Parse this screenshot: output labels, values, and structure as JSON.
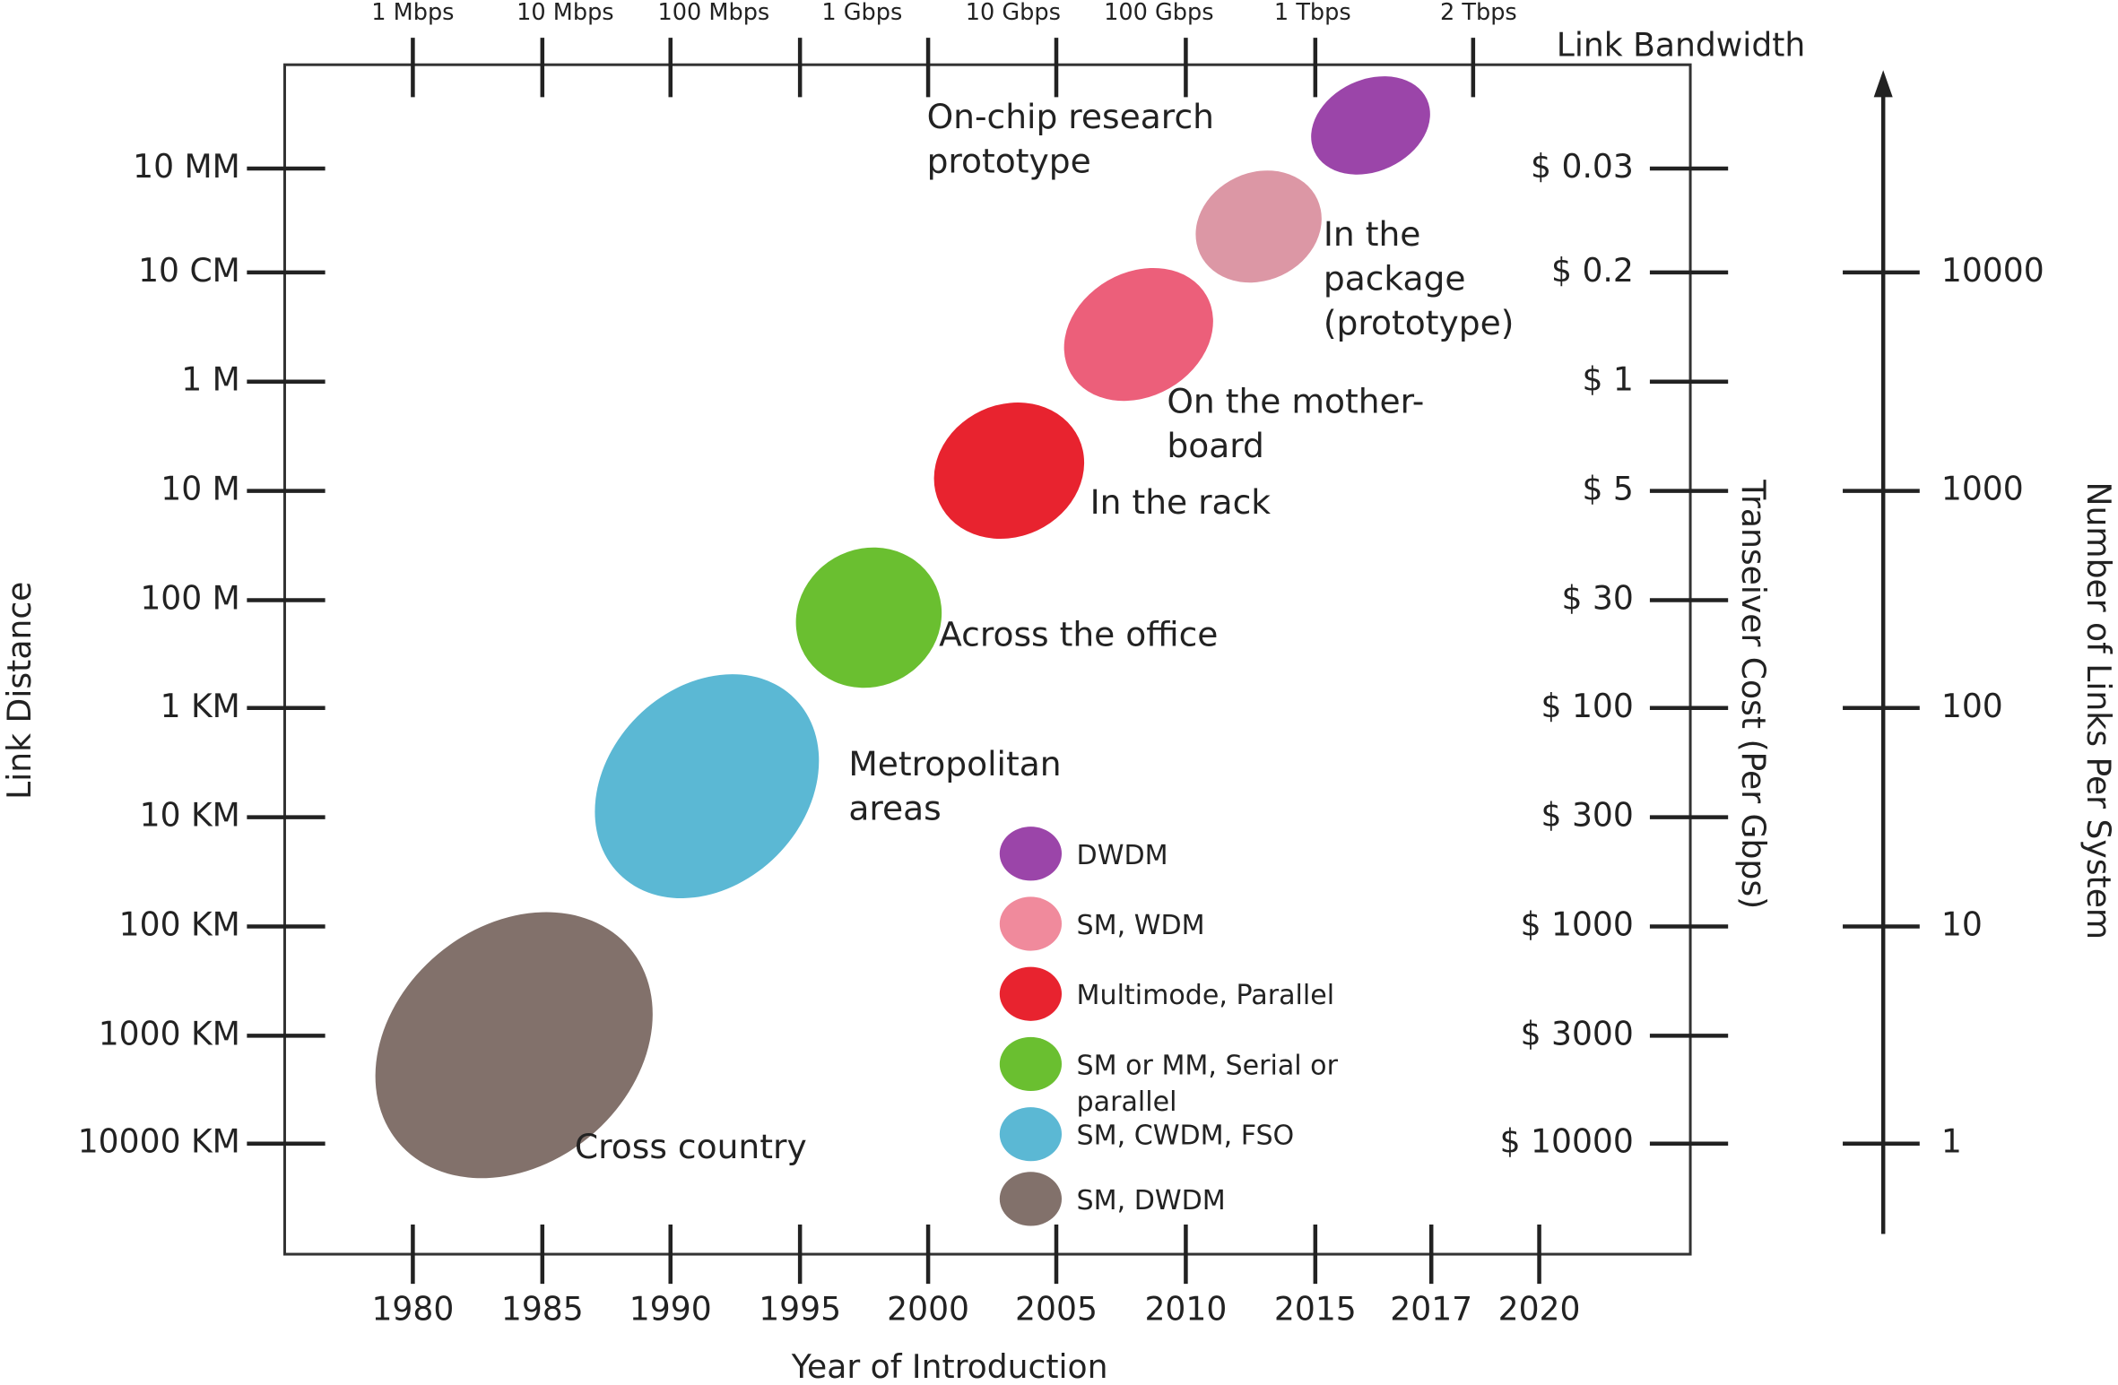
{
  "top_axis": {
    "title": "Link Bandwidth",
    "ticks": [
      "1 Mbps",
      "10 Mbps",
      "100 Mbps",
      "1 Gbps",
      "10 Gbps",
      "100 Gbps",
      "1 Tbps",
      "2 Tbps"
    ]
  },
  "bottom_axis": {
    "title": "Year of Introduction",
    "ticks": [
      "1980",
      "1985",
      "1990",
      "1995",
      "2000",
      "2005",
      "2010",
      "2015",
      "2017",
      "2020"
    ]
  },
  "left_axis": {
    "title": "Link Distance",
    "ticks": [
      "10 MM",
      "10 CM",
      "1 M",
      "10 M",
      "100 M",
      "1 KM",
      "10 KM",
      "100 KM",
      "1000 KM",
      "10000 KM"
    ]
  },
  "cost_axis": {
    "title": "Transeiver Cost (Per Gbps)",
    "ticks": [
      "$ 0.03",
      "$ 0.2",
      "$ 1",
      "$ 5",
      "$ 30",
      "$ 100",
      "$ 300",
      "$ 1000",
      "$ 3000",
      "$ 10000"
    ]
  },
  "links_axis": {
    "title": "Number of Links Per System",
    "ticks": [
      "10000",
      "1000",
      "100",
      "10",
      "1"
    ]
  },
  "regions": [
    {
      "label": [
        "On-chip research",
        "prototype"
      ],
      "color": "#9b45a9"
    },
    {
      "label": [
        "In the",
        "package",
        "(prototype)"
      ],
      "color": "#dc97a5"
    },
    {
      "label": [
        "On the mother-",
        "board"
      ],
      "color": "#ec5f7a"
    },
    {
      "label": [
        "In the rack"
      ],
      "color": "#e8232f"
    },
    {
      "label": [
        "Across the office"
      ],
      "color": "#6abf30"
    },
    {
      "label": [
        "Metropolitan",
        "areas"
      ],
      "color": "#5bb8d4"
    },
    {
      "label": [
        "Cross country"
      ],
      "color": "#82716b"
    }
  ],
  "legend": [
    {
      "label": [
        "DWDM"
      ],
      "color": "#9b45a9"
    },
    {
      "label": [
        "SM, WDM"
      ],
      "color": "#f08a9c"
    },
    {
      "label": [
        "Multimode, Parallel"
      ],
      "color": "#e8232f"
    },
    {
      "label": [
        "SM or MM, Serial or",
        "parallel"
      ],
      "color": "#6abf30"
    },
    {
      "label": [
        "SM, CWDM, FSO"
      ],
      "color": "#5bb8d4"
    },
    {
      "label": [
        "SM, DWDM"
      ],
      "color": "#82716b"
    }
  ]
}
